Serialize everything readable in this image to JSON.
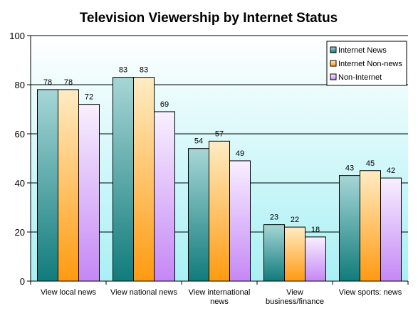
{
  "chart_data": {
    "type": "bar",
    "title": "Television Viewership by Internet Status",
    "xlabel": "",
    "ylabel": "",
    "ylim": [
      0,
      100
    ],
    "yticks": [
      0,
      20,
      40,
      60,
      80,
      100
    ],
    "grid": true,
    "legend_position": "top-right",
    "categories": [
      [
        "View local news"
      ],
      [
        "View national news"
      ],
      [
        "View international",
        "news"
      ],
      [
        "View",
        "business/finance"
      ],
      [
        "View sports: news"
      ]
    ],
    "series": [
      {
        "name": "Internet News",
        "values": [
          78,
          83,
          54,
          23,
          43
        ],
        "color_top": "#a6d6d6",
        "color_bottom": "#117b7b"
      },
      {
        "name": "Internet Non-news",
        "values": [
          78,
          83,
          57,
          22,
          45
        ],
        "color_top": "#ffecc4",
        "color_bottom": "#ff9a10"
      },
      {
        "name": "Non-Internet",
        "values": [
          72,
          69,
          49,
          18,
          42
        ],
        "color_top": "#f8f0ff",
        "color_bottom": "#c587f5"
      }
    ],
    "plot_background_top": "#ffffff",
    "plot_background_bottom": "#a8f0f4"
  }
}
